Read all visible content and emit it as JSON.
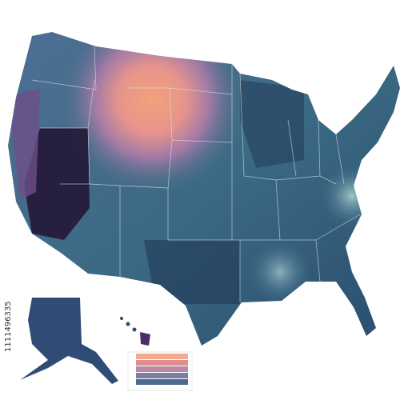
{
  "watermark_id": "1111496335"
}
